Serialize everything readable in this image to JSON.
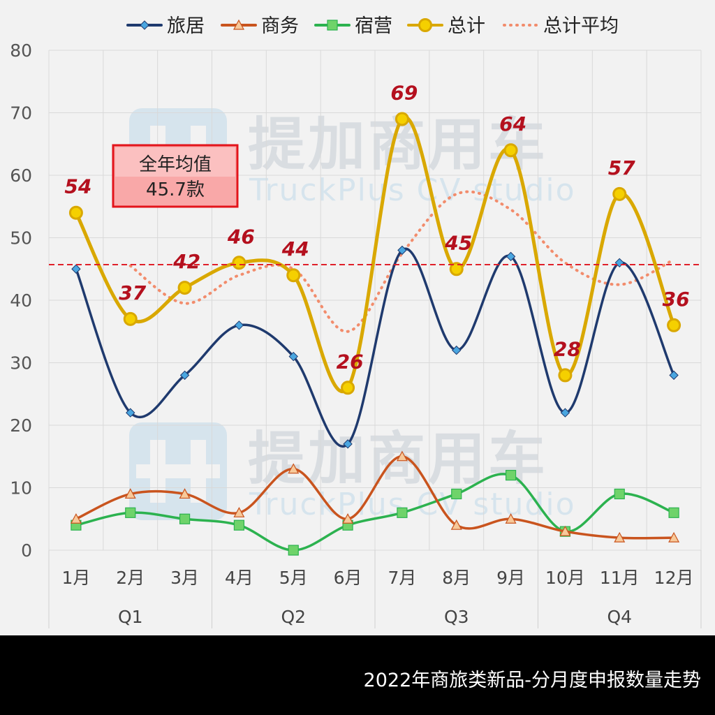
{
  "chart_data": {
    "type": "line",
    "title": "2022年商旅类新品-分月度申报数量走势",
    "categories": [
      "1月",
      "2月",
      "3月",
      "4月",
      "5月",
      "6月",
      "7月",
      "8月",
      "9月",
      "10月",
      "11月",
      "12月"
    ],
    "quarters": [
      "Q1",
      "Q2",
      "Q3",
      "Q4"
    ],
    "ylim": [
      0,
      80
    ],
    "yticks": [
      0,
      10,
      20,
      30,
      40,
      50,
      60,
      70,
      80
    ],
    "grid": true,
    "legend_position": "top",
    "series": [
      {
        "name": "旅居",
        "values": [
          45,
          22,
          28,
          36,
          31,
          17,
          48,
          32,
          47,
          22,
          46,
          28
        ],
        "color": "#1f3a6e",
        "marker": "diamond",
        "marker_color": "#4aa6e0"
      },
      {
        "name": "商务",
        "values": [
          5,
          9,
          9,
          6,
          13,
          5,
          15,
          4,
          5,
          3,
          2,
          2
        ],
        "color": "#c9541e",
        "marker": "triangle",
        "marker_color": "#f7c99a"
      },
      {
        "name": "宿营",
        "values": [
          4,
          6,
          5,
          4,
          0,
          4,
          6,
          9,
          12,
          3,
          9,
          6
        ],
        "color": "#2cb24f",
        "marker": "square",
        "marker_color": "#6fd36a"
      },
      {
        "name": "总计",
        "values": [
          54,
          37,
          42,
          46,
          44,
          26,
          69,
          45,
          64,
          28,
          57,
          36
        ],
        "color": "#d9a800",
        "marker": "circle",
        "marker_color": "#f5d000",
        "data_labels": true
      },
      {
        "name": "总计平均",
        "values": [
          null,
          45.5,
          39.5,
          44,
          45,
          35,
          47.5,
          57,
          54.5,
          46,
          42.5,
          46.5
        ],
        "color": "#f28c6c",
        "style": "dotted"
      }
    ],
    "average_line": {
      "value": 45.7,
      "color": "#e0202a"
    },
    "annotation": {
      "line1": "全年均值",
      "line2": "45.7款"
    }
  },
  "watermark": {
    "brand": "提加商用车",
    "sub": "TruckPlus CV studio"
  },
  "footer": {
    "title": "2022年商旅类新品-分月度申报数量走势"
  }
}
